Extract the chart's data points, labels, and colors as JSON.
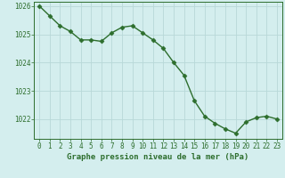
{
  "hours": [
    0,
    1,
    2,
    3,
    4,
    5,
    6,
    7,
    8,
    9,
    10,
    11,
    12,
    13,
    14,
    15,
    16,
    17,
    18,
    19,
    20,
    21,
    22,
    23
  ],
  "pressure": [
    1026.0,
    1025.65,
    1025.3,
    1025.1,
    1024.8,
    1024.8,
    1024.75,
    1025.05,
    1025.25,
    1025.3,
    1025.05,
    1024.8,
    1024.5,
    1024.0,
    1023.55,
    1022.65,
    1022.1,
    1021.85,
    1021.65,
    1021.5,
    1021.9,
    1022.05,
    1022.1,
    1022.0
  ],
  "line_color": "#2d6e2d",
  "marker": "D",
  "marker_size": 2.5,
  "background_color": "#d4eeee",
  "grid_color": "#b8d8d8",
  "ylim_min": 1021.3,
  "ylim_max": 1026.15,
  "yticks": [
    1022,
    1023,
    1024,
    1025,
    1026
  ],
  "xlabel": "Graphe pression niveau de la mer (hPa)",
  "xlabel_fontsize": 6.5,
  "tick_fontsize": 5.5,
  "linewidth": 1.0
}
